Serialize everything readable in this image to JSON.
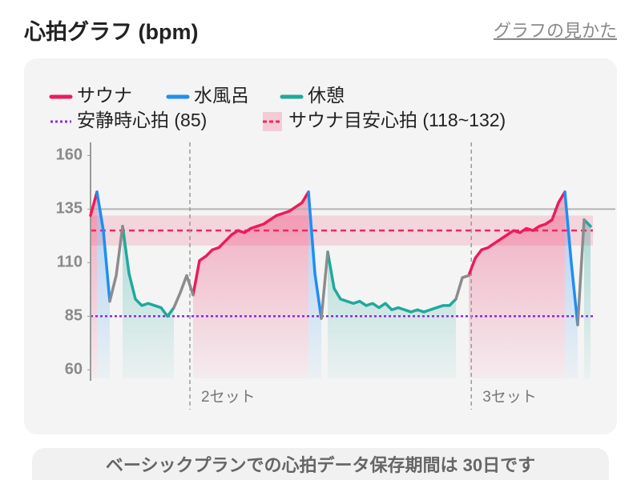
{
  "header": {
    "title": "心拍グラフ (bpm)",
    "link": "グラフの見かた"
  },
  "chart_data": {
    "type": "line",
    "x": [
      0,
      1,
      2,
      3,
      4,
      5,
      6,
      7,
      8,
      9,
      10,
      11,
      12,
      13,
      14,
      15,
      16,
      17,
      18,
      19,
      20,
      21,
      22,
      23,
      24,
      25,
      26,
      27,
      28,
      29,
      30,
      31,
      32,
      33,
      34,
      35,
      36,
      37,
      38,
      39,
      40,
      41,
      42,
      43,
      44,
      45,
      46,
      47,
      48,
      49,
      50,
      51,
      52,
      53,
      54,
      55,
      56,
      57,
      58,
      59,
      60,
      61,
      62,
      63,
      64,
      65,
      66,
      67,
      68,
      69,
      70,
      71,
      72,
      73,
      74,
      75,
      76,
      77,
      78
    ],
    "xlim": [
      0,
      78
    ],
    "ylim": [
      56,
      165
    ],
    "yticks": [
      60,
      85,
      110,
      135,
      160
    ],
    "series": [
      {
        "name": "サウナ",
        "color": "#ec1c5c",
        "area": true,
        "values": [
          132,
          143,
          null,
          null,
          null,
          null,
          null,
          null,
          null,
          null,
          null,
          null,
          null,
          null,
          null,
          null,
          95,
          111,
          113,
          116,
          117,
          120,
          123,
          125,
          124,
          126,
          127,
          128,
          130,
          132,
          133,
          134,
          136,
          138,
          143,
          null,
          null,
          null,
          null,
          null,
          null,
          null,
          null,
          null,
          null,
          null,
          null,
          null,
          null,
          null,
          null,
          null,
          null,
          null,
          null,
          null,
          null,
          null,
          null,
          104,
          112,
          116,
          117,
          119,
          121,
          123,
          125,
          124,
          126,
          125,
          127,
          128,
          130,
          138,
          143,
          null,
          null,
          null,
          null
        ]
      },
      {
        "name": "水風呂",
        "color": "#1e8ef2",
        "area": true,
        "values": [
          null,
          143,
          125,
          92,
          null,
          null,
          null,
          null,
          null,
          null,
          null,
          null,
          null,
          null,
          null,
          null,
          null,
          null,
          null,
          null,
          null,
          null,
          null,
          null,
          null,
          null,
          null,
          null,
          null,
          null,
          null,
          null,
          null,
          null,
          143,
          105,
          84,
          null,
          null,
          null,
          null,
          null,
          null,
          null,
          null,
          null,
          null,
          null,
          null,
          null,
          null,
          null,
          null,
          null,
          null,
          null,
          null,
          null,
          null,
          null,
          null,
          null,
          null,
          null,
          null,
          null,
          null,
          null,
          null,
          null,
          null,
          null,
          null,
          null,
          143,
          110,
          81,
          null,
          null
        ]
      },
      {
        "name": "休憩",
        "color": "#1fa99b",
        "area": true,
        "values": [
          null,
          null,
          null,
          null,
          null,
          127,
          105,
          93,
          90,
          91,
          90,
          89,
          85,
          89,
          null,
          null,
          null,
          null,
          null,
          null,
          null,
          null,
          null,
          null,
          null,
          null,
          null,
          null,
          null,
          null,
          null,
          null,
          null,
          null,
          null,
          null,
          null,
          115,
          98,
          93,
          92,
          91,
          92,
          90,
          91,
          89,
          91,
          88,
          89,
          88,
          87,
          88,
          87,
          88,
          89,
          90,
          90,
          93,
          null,
          null,
          null,
          null,
          null,
          null,
          null,
          null,
          null,
          null,
          null,
          null,
          null,
          null,
          null,
          null,
          null,
          null,
          null,
          130,
          127
        ]
      },
      {
        "color": "#8c8c8c",
        "area": false,
        "values": [
          null,
          null,
          null,
          92,
          104,
          127,
          null,
          null,
          null,
          null,
          null,
          null,
          null,
          89,
          96,
          104,
          95,
          null,
          null,
          null,
          null,
          null,
          null,
          null,
          null,
          null,
          null,
          null,
          null,
          null,
          null,
          null,
          null,
          null,
          null,
          null,
          84,
          115,
          null,
          null,
          null,
          null,
          null,
          null,
          null,
          null,
          null,
          null,
          null,
          null,
          null,
          null,
          null,
          null,
          null,
          null,
          null,
          93,
          103,
          104,
          null,
          null,
          null,
          null,
          null,
          null,
          null,
          null,
          null,
          null,
          null,
          null,
          null,
          null,
          null,
          null,
          81,
          130,
          null
        ]
      }
    ],
    "resting": {
      "label": "安静時心拍 (85)",
      "value": 85,
      "color": "#8a2be2"
    },
    "sauna_zone": {
      "label": "サウナ目安心拍 (118~132)",
      "low": 118,
      "high": 132,
      "line": 125,
      "color": "#f0285f"
    },
    "ref_line": {
      "value": 135,
      "color": "#b4b4b4"
    },
    "set_markers": [
      {
        "x": 15.5,
        "label": "2セット"
      },
      {
        "x": 59.4,
        "label": "3セット"
      }
    ]
  },
  "footer": {
    "text": "ベーシックプランでの心拍データ保存期間は 30日です"
  }
}
